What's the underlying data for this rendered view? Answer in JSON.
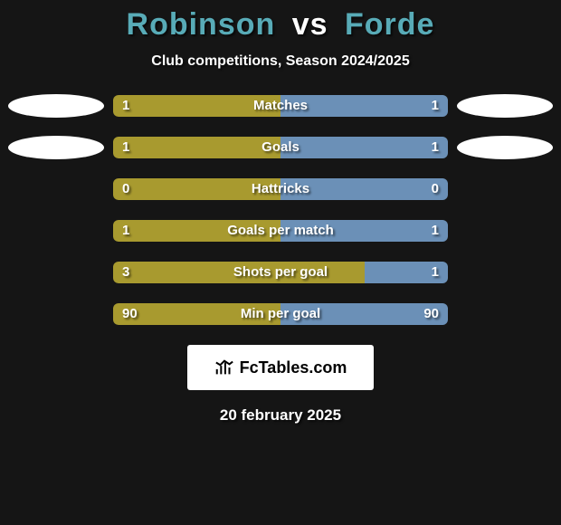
{
  "title": {
    "player1": "Robinson",
    "vs": "vs",
    "player2": "Forde",
    "color": "#58abb7"
  },
  "subtitle": "Club competitions, Season 2024/2025",
  "colors": {
    "left": "#a89a2f",
    "right": "#6b90b7",
    "background": "#151515",
    "oval": "#ffffff"
  },
  "ovals": [
    true,
    true,
    false,
    false,
    false,
    false
  ],
  "stats": [
    {
      "label": "Matches",
      "left_val": "1",
      "right_val": "1",
      "left_pct": 50,
      "right_pct": 50
    },
    {
      "label": "Goals",
      "left_val": "1",
      "right_val": "1",
      "left_pct": 50,
      "right_pct": 50
    },
    {
      "label": "Hattricks",
      "left_val": "0",
      "right_val": "0",
      "left_pct": 50,
      "right_pct": 50
    },
    {
      "label": "Goals per match",
      "left_val": "1",
      "right_val": "1",
      "left_pct": 50,
      "right_pct": 50
    },
    {
      "label": "Shots per goal",
      "left_val": "3",
      "right_val": "1",
      "left_pct": 75,
      "right_pct": 25
    },
    {
      "label": "Min per goal",
      "left_val": "90",
      "right_val": "90",
      "left_pct": 50,
      "right_pct": 50
    }
  ],
  "logo_text": "FcTables.com",
  "date": "20 february 2025"
}
